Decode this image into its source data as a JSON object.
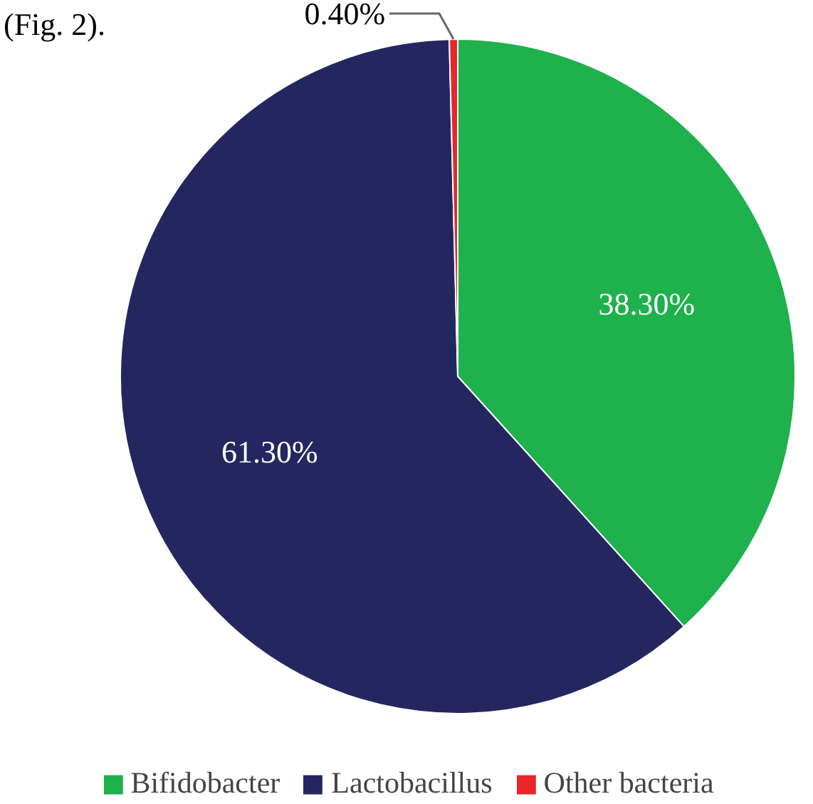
{
  "chart_data": {
    "type": "pie",
    "categories": [
      "Bifidobacter",
      "Lactobacillus",
      "Other bacteria"
    ],
    "values": [
      38.3,
      61.3,
      0.4
    ],
    "colors": [
      "#1eb14c",
      "#24275f",
      "#e8262b"
    ],
    "value_labels": [
      "38.30%",
      "61.30%",
      "0.40%"
    ],
    "legend": "bottom",
    "annotations": [
      "(Fig. 2)."
    ]
  }
}
